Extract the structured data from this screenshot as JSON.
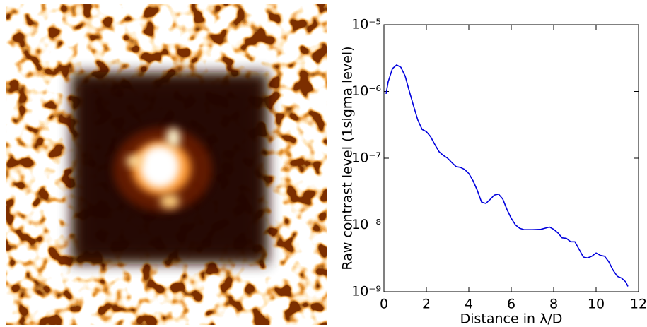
{
  "chart_data": {
    "type": "line",
    "xlabel": "Distance in λ/D",
    "ylabel": "Raw contrast level (1sigma level)",
    "x": [
      0.1,
      0.2,
      0.4,
      0.6,
      0.8,
      1.0,
      1.2,
      1.4,
      1.6,
      1.8,
      2.0,
      2.2,
      2.4,
      2.6,
      2.8,
      3.0,
      3.2,
      3.4,
      3.6,
      3.8,
      4.0,
      4.2,
      4.4,
      4.6,
      4.8,
      5.0,
      5.2,
      5.4,
      5.6,
      5.8,
      6.0,
      6.2,
      6.4,
      6.6,
      7.0,
      7.4,
      7.8,
      8.0,
      8.2,
      8.4,
      8.6,
      8.8,
      9.0,
      9.2,
      9.4,
      9.6,
      9.8,
      10.0,
      10.2,
      10.4,
      10.6,
      10.8,
      11.0,
      11.2,
      11.4,
      11.5
    ],
    "values": [
      9.2e-07,
      1.4e-06,
      2.2e-06,
      2.5e-06,
      2.3e-06,
      1.7e-06,
      1e-06,
      6e-07,
      3.7e-07,
      2.7e-07,
      2.5e-07,
      2.1e-07,
      1.6e-07,
      1.25e-07,
      1.1e-07,
      1e-07,
      8.6e-08,
      7.5e-08,
      7.3e-08,
      6.8e-08,
      5.9e-08,
      4.6e-08,
      3.3e-08,
      2.2e-08,
      2.1e-08,
      2.4e-08,
      2.8e-08,
      2.9e-08,
      2.45e-08,
      1.7e-08,
      1.26e-08,
      1e-08,
      8.9e-09,
      8.5e-09,
      8.5e-09,
      8.6e-09,
      9.3e-09,
      8.6e-09,
      7.6e-09,
      6.4e-09,
      6.3e-09,
      5.6e-09,
      5.6e-09,
      4.3e-09,
      3.3e-09,
      3.2e-09,
      3.4e-09,
      3.8e-09,
      3.5e-09,
      3.4e-09,
      2.8e-09,
      2.1e-09,
      1.7e-09,
      1.6e-09,
      1.4e-09,
      1.2e-09
    ],
    "color": "#0000dd",
    "xlim": [
      0,
      12
    ],
    "xticks": [
      0,
      2,
      4,
      6,
      8,
      10,
      12
    ],
    "ylim": [
      1e-09,
      1e-05
    ],
    "yticks": [
      {
        "value": 1e-09,
        "label": "10⁻⁹"
      },
      {
        "value": 1e-08,
        "label": "10⁻⁸"
      },
      {
        "value": 1e-07,
        "label": "10⁻⁷"
      },
      {
        "value": 1e-06,
        "label": "10⁻⁶"
      },
      {
        "value": 1e-05,
        "label": "10⁻⁵"
      }
    ],
    "log_scale": "y"
  }
}
